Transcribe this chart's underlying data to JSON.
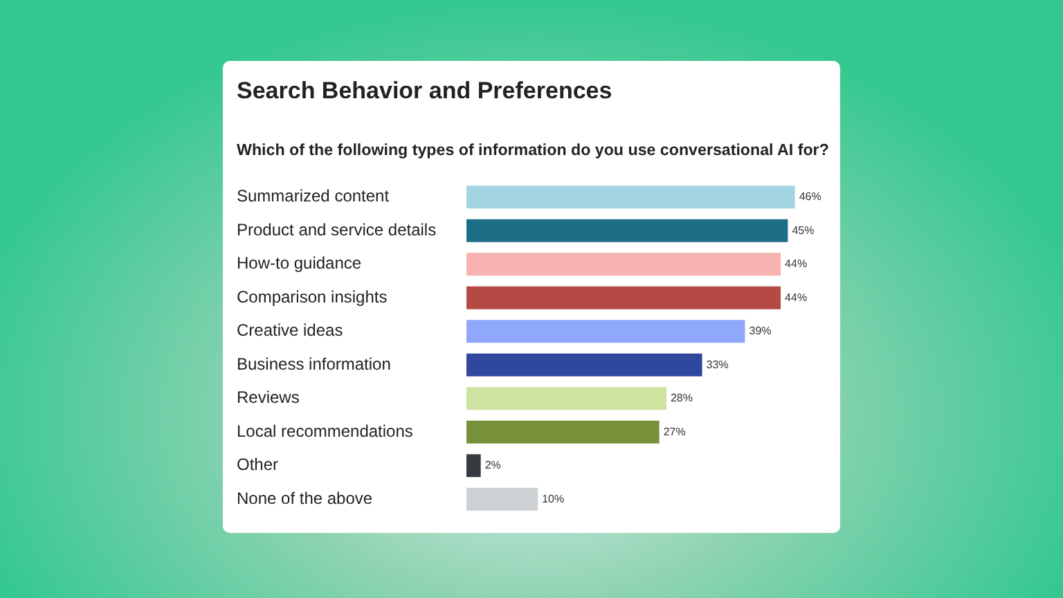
{
  "chart_data": {
    "type": "bar",
    "orientation": "horizontal",
    "title": "Search Behavior and Preferences",
    "subtitle": "Which of the following types of information do you use conversational AI for?",
    "categories": [
      "Summarized content",
      "Product and service details",
      "How-to guidance",
      "Comparison insights",
      "Creative ideas",
      "Business information",
      "Reviews",
      "Local recommendations",
      "Other",
      "None of the above"
    ],
    "values": [
      46,
      45,
      44,
      44,
      39,
      33,
      28,
      27,
      2,
      10
    ],
    "value_labels": [
      "46%",
      "45%",
      "44%",
      "44%",
      "39%",
      "33%",
      "28%",
      "27%",
      "2%",
      "10%"
    ],
    "colors": [
      "#a3d4e4",
      "#1c6e86",
      "#f6b3b0",
      "#b54a45",
      "#90a8fc",
      "#30479e",
      "#cfe3a0",
      "#77913a",
      "#353b40",
      "#cdd1d4"
    ]
  }
}
